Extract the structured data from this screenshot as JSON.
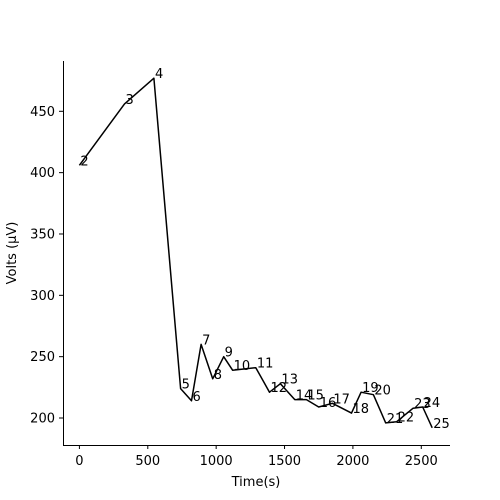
{
  "chart_data": {
    "type": "line",
    "xlabel": "Time(s)",
    "ylabel": "Volts (µV)",
    "xlim": [
      -120,
      2710
    ],
    "ylim": [
      178,
      491
    ],
    "xticks": [
      0,
      500,
      1000,
      1500,
      2000,
      2500
    ],
    "yticks": [
      200,
      250,
      300,
      350,
      400,
      450
    ],
    "grid": false,
    "line_color": "#000000",
    "series": [
      {
        "points": [
          {
            "x": 0,
            "y": 406,
            "label": "2"
          },
          {
            "x": 330,
            "y": 456,
            "label": "3"
          },
          {
            "x": 545,
            "y": 477,
            "label": "4"
          },
          {
            "x": 740,
            "y": 224,
            "label": "5"
          },
          {
            "x": 820,
            "y": 214,
            "label": "6"
          },
          {
            "x": 890,
            "y": 260,
            "label": "7"
          },
          {
            "x": 975,
            "y": 232,
            "label": "8"
          },
          {
            "x": 1055,
            "y": 250,
            "label": "9"
          },
          {
            "x": 1120,
            "y": 239,
            "label": "10"
          },
          {
            "x": 1290,
            "y": 241,
            "label": "11"
          },
          {
            "x": 1390,
            "y": 221,
            "label": "12"
          },
          {
            "x": 1470,
            "y": 228,
            "label": "13"
          },
          {
            "x": 1575,
            "y": 215,
            "label": "14"
          },
          {
            "x": 1660,
            "y": 215,
            "label": "15"
          },
          {
            "x": 1750,
            "y": 209,
            "label": "16"
          },
          {
            "x": 1850,
            "y": 212,
            "label": "17"
          },
          {
            "x": 1990,
            "y": 204,
            "label": "18"
          },
          {
            "x": 2060,
            "y": 221,
            "label": "19"
          },
          {
            "x": 2150,
            "y": 219,
            "label": "20"
          },
          {
            "x": 2240,
            "y": 196,
            "label": "21"
          },
          {
            "x": 2320,
            "y": 197,
            "label": "22"
          },
          {
            "x": 2440,
            "y": 208,
            "label": "23"
          },
          {
            "x": 2510,
            "y": 209,
            "label": "24"
          },
          {
            "x": 2580,
            "y": 192,
            "label": "25"
          }
        ]
      }
    ]
  }
}
